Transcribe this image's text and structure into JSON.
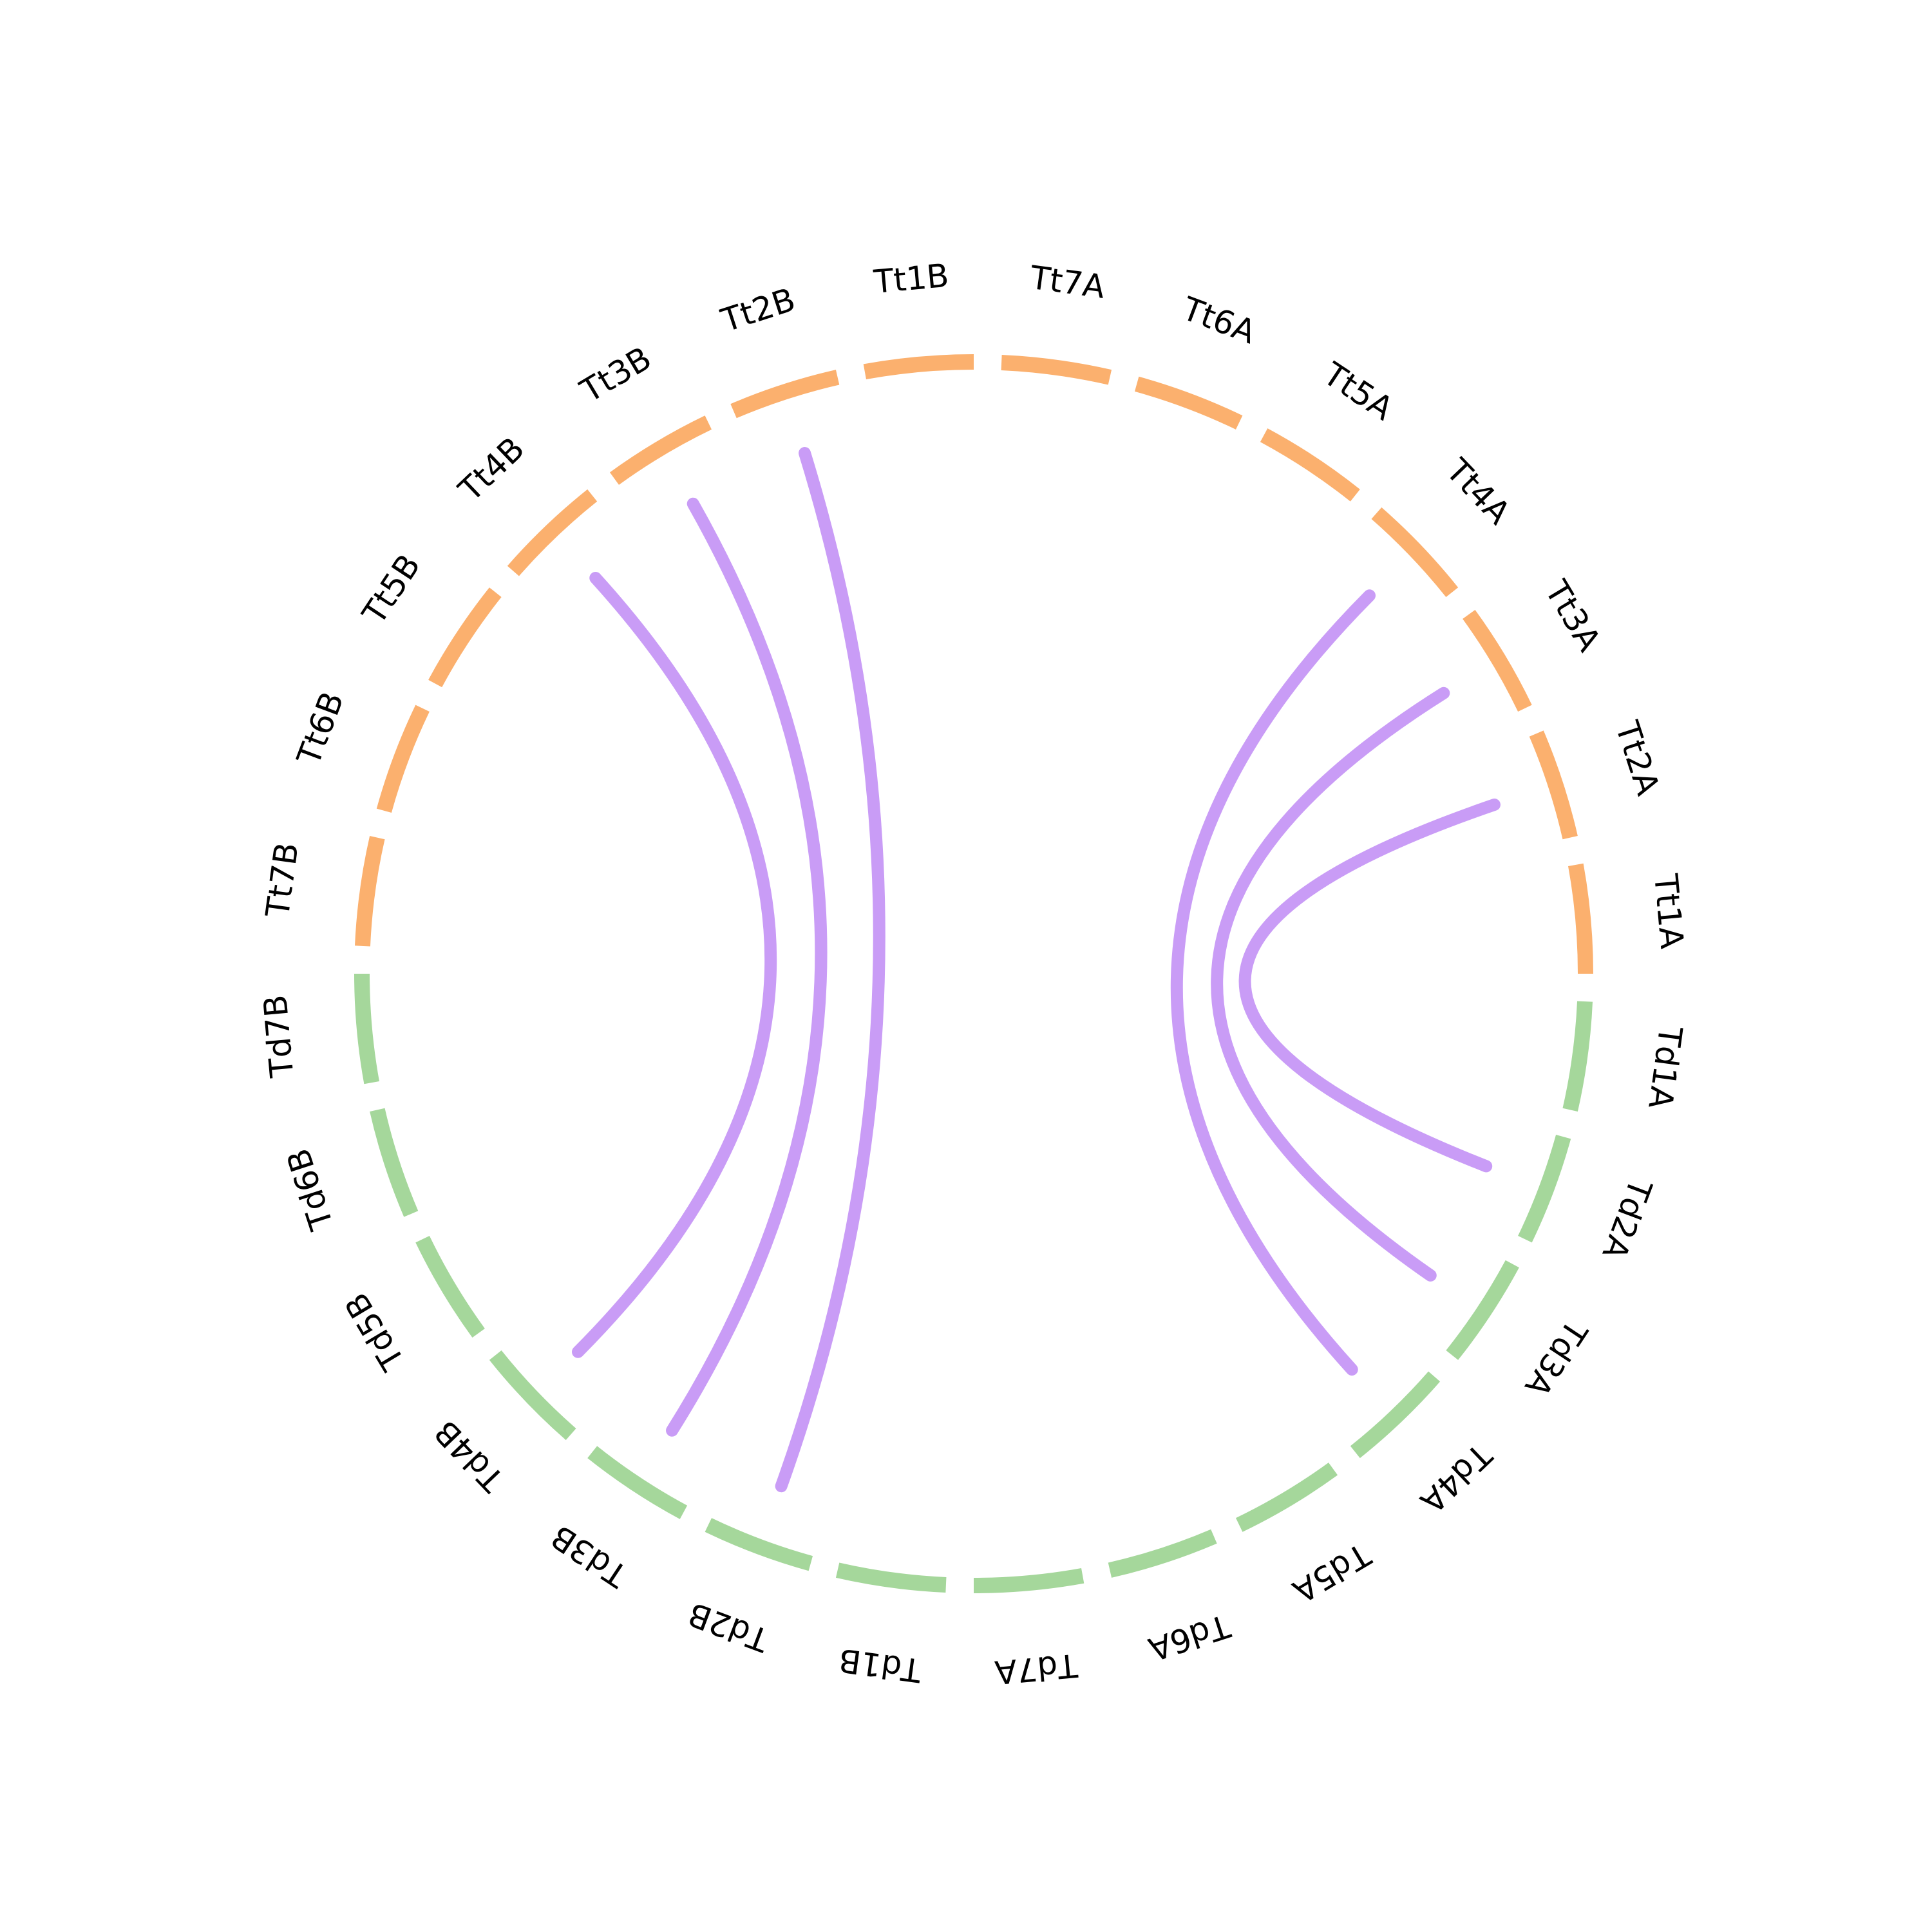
{
  "colors": {
    "group_td": "#a5d79b",
    "group_tt": "#fbb06e",
    "link": "#c99cf6",
    "label": "#000000",
    "background": "#ffffff"
  },
  "segments": [
    {
      "label": "Td1A",
      "group": "td"
    },
    {
      "label": "Td2A",
      "group": "td"
    },
    {
      "label": "Td3A",
      "group": "td"
    },
    {
      "label": "Td4A",
      "group": "td"
    },
    {
      "label": "Td5A",
      "group": "td"
    },
    {
      "label": "Td6A",
      "group": "td"
    },
    {
      "label": "Td7A",
      "group": "td"
    },
    {
      "label": "Td1B",
      "group": "td"
    },
    {
      "label": "Td2B",
      "group": "td"
    },
    {
      "label": "Td3B",
      "group": "td"
    },
    {
      "label": "Td4B",
      "group": "td"
    },
    {
      "label": "Td5B",
      "group": "td"
    },
    {
      "label": "Td6B",
      "group": "td"
    },
    {
      "label": "Td7B",
      "group": "td"
    },
    {
      "label": "Tt7B",
      "group": "tt"
    },
    {
      "label": "Tt6B",
      "group": "tt"
    },
    {
      "label": "Tt5B",
      "group": "tt"
    },
    {
      "label": "Tt4B",
      "group": "tt"
    },
    {
      "label": "Tt3B",
      "group": "tt"
    },
    {
      "label": "Tt2B",
      "group": "tt"
    },
    {
      "label": "Tt1B",
      "group": "tt"
    },
    {
      "label": "Tt7A",
      "group": "tt"
    },
    {
      "label": "Tt6A",
      "group": "tt"
    },
    {
      "label": "Tt5A",
      "group": "tt"
    },
    {
      "label": "Tt4A",
      "group": "tt"
    },
    {
      "label": "Tt3A",
      "group": "tt"
    },
    {
      "label": "Tt2A",
      "group": "tt"
    },
    {
      "label": "Tt1A",
      "group": "tt"
    }
  ],
  "links": [
    {
      "from": "Td2A",
      "to": "Tt2A"
    },
    {
      "from": "Td3A",
      "to": "Tt3A"
    },
    {
      "from": "Td4A",
      "to": "Tt4A"
    },
    {
      "from": "Td2B",
      "to": "Tt2B"
    },
    {
      "from": "Td3B",
      "to": "Tt3B"
    },
    {
      "from": "Td4B",
      "to": "Tt4B"
    }
  ]
}
